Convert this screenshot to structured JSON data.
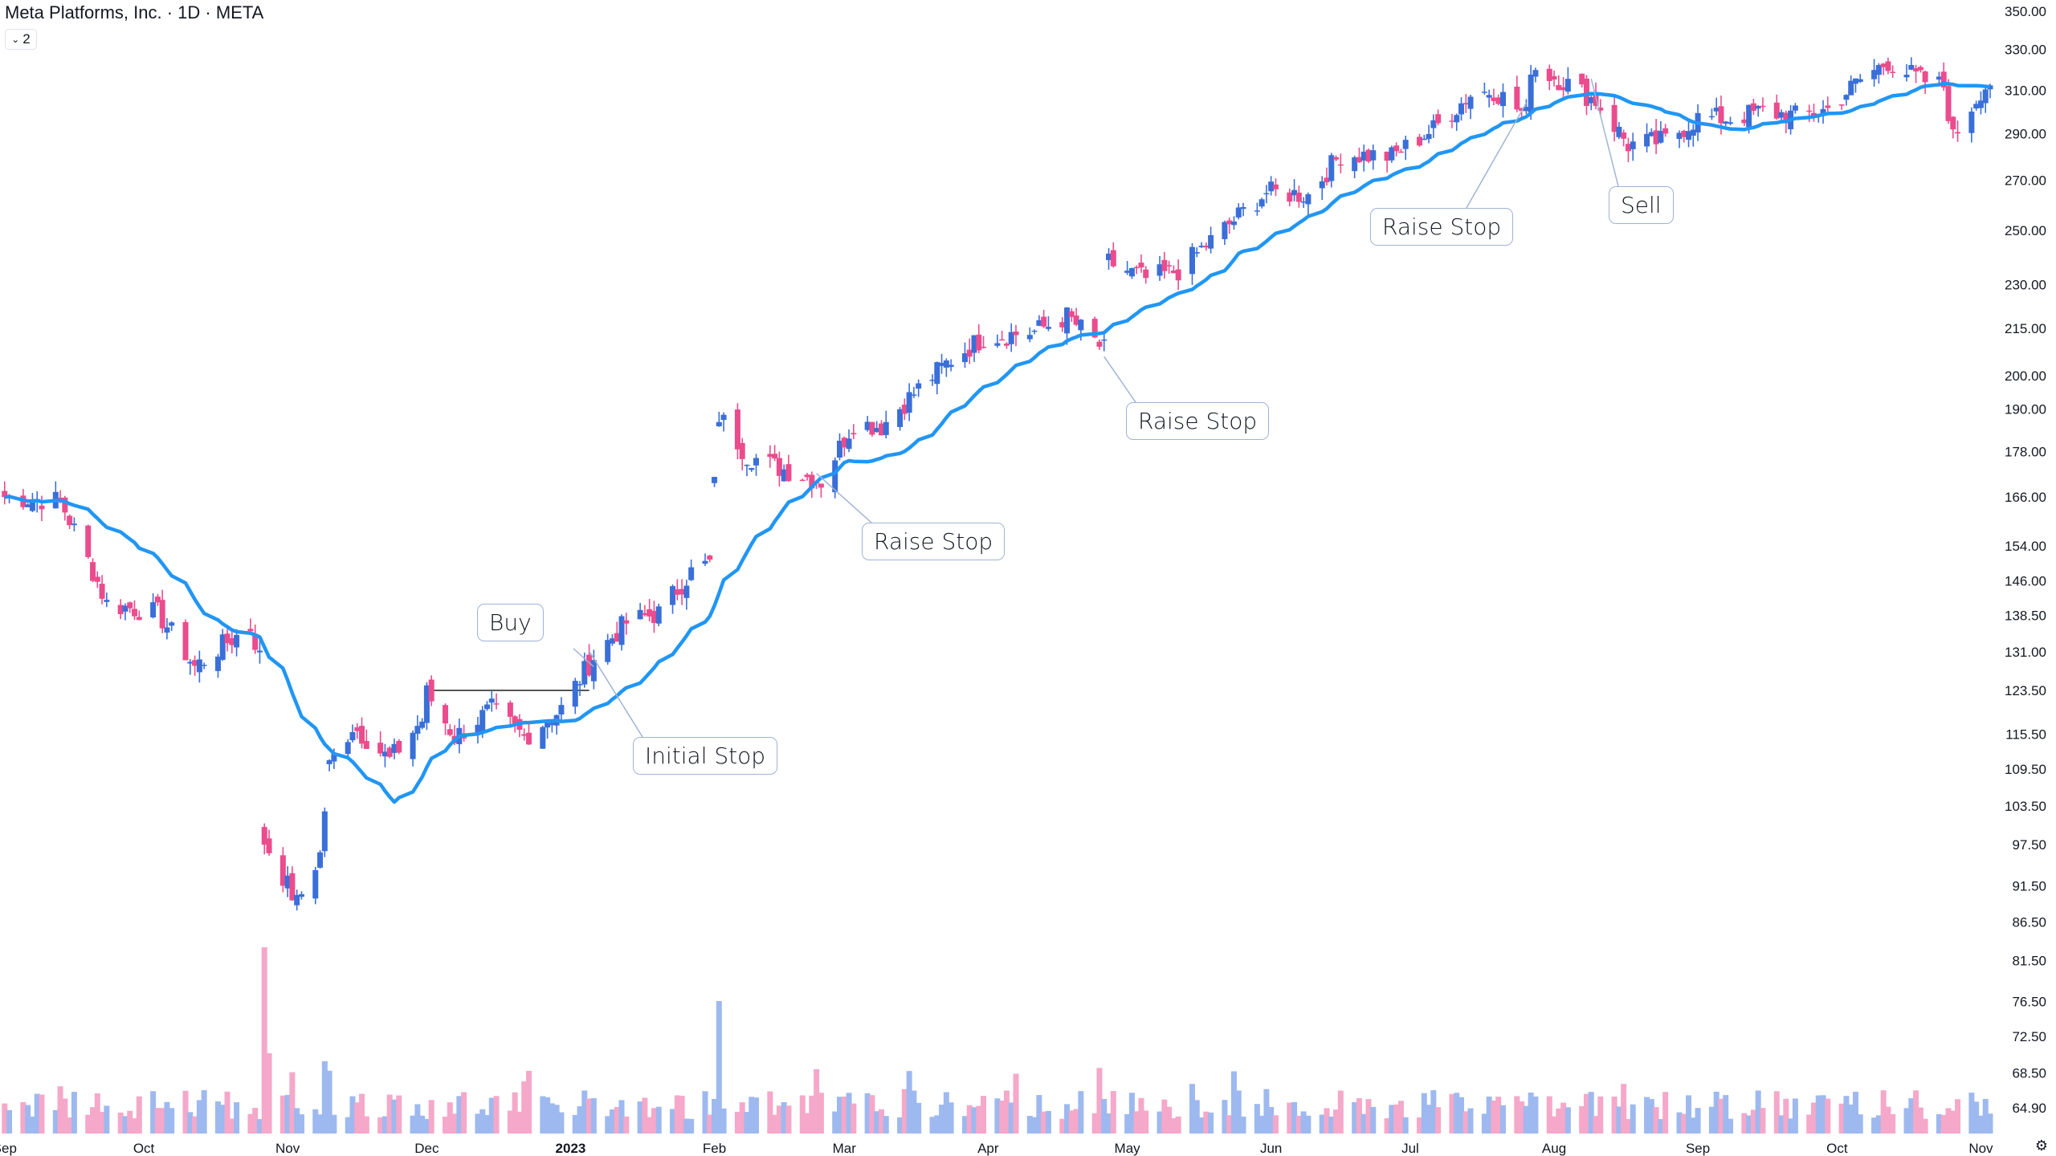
{
  "header": {
    "title": "Meta Platforms, Inc. · 1D · META",
    "collapse_count": "2"
  },
  "annotations": [
    {
      "label": "Buy"
    },
    {
      "label": "Initial Stop"
    },
    {
      "label": "Raise Stop"
    },
    {
      "label": "Raise Stop"
    },
    {
      "label": "Raise Stop"
    },
    {
      "label": "Sell"
    }
  ],
  "colors": {
    "up": "#3a6fd8",
    "down": "#ea4c8d",
    "ma": "#2196f3",
    "vol_up": "#9db9ef",
    "vol_down": "#f5a8c9",
    "buy_line": "#555555",
    "callout": "#9fb3d6"
  },
  "icons": {
    "settings": "gear-icon"
  },
  "chart_data": {
    "type": "candlestick",
    "title": "Meta Platforms, Inc. · 1D · META",
    "x_labels": [
      "Sep",
      "Oct",
      "Nov",
      "Dec",
      "2023",
      "Feb",
      "Mar",
      "Apr",
      "May",
      "Jun",
      "Jul",
      "Aug",
      "Sep",
      "Oct",
      "Nov"
    ],
    "y_ticks": [
      64.9,
      68.5,
      72.5,
      76.5,
      81.5,
      86.5,
      91.5,
      97.5,
      103.5,
      109.5,
      115.5,
      123.5,
      131.0,
      138.5,
      146.0,
      154.0,
      166.0,
      178.0,
      190.0,
      200.0,
      215.0,
      230.0,
      250.0,
      270.0,
      290.0,
      310.0,
      330.0,
      350.0
    ],
    "y_scale": "log",
    "ylim": [
      64.9,
      350.0
    ],
    "xlim": [
      "2022-08-31",
      "2023-11-03"
    ],
    "moving_average": {
      "type": "21-day",
      "color": "#2196f3"
    },
    "price_anchors": [
      [
        "2022-09-01",
        166
      ],
      [
        "2022-09-13",
        165
      ],
      [
        "2022-09-23",
        141
      ],
      [
        "2022-10-04",
        139
      ],
      [
        "2022-10-12",
        128
      ],
      [
        "2022-10-19",
        133
      ],
      [
        "2022-10-24",
        136
      ],
      [
        "2022-10-26",
        130
      ],
      [
        "2022-10-27",
        98
      ],
      [
        "2022-11-03",
        89
      ],
      [
        "2022-11-08",
        96
      ],
      [
        "2022-11-10",
        110
      ],
      [
        "2022-11-15",
        117
      ],
      [
        "2022-11-23",
        111
      ],
      [
        "2022-11-30",
        118
      ],
      [
        "2022-12-01",
        123
      ],
      [
        "2022-12-07",
        115
      ],
      [
        "2022-12-15",
        120
      ],
      [
        "2022-12-22",
        115
      ],
      [
        "2022-12-30",
        120
      ],
      [
        "2023-01-06",
        130
      ],
      [
        "2023-01-13",
        137
      ],
      [
        "2023-01-20",
        139
      ],
      [
        "2023-01-27",
        148
      ],
      [
        "2023-01-31",
        150
      ],
      [
        "2023-02-02",
        188
      ],
      [
        "2023-02-08",
        177
      ],
      [
        "2023-02-14",
        174
      ],
      [
        "2023-02-24",
        170
      ],
      [
        "2023-03-03",
        186
      ],
      [
        "2023-03-09",
        185
      ],
      [
        "2023-03-17",
        196
      ],
      [
        "2023-03-24",
        205
      ],
      [
        "2023-03-31",
        212
      ],
      [
        "2023-04-11",
        214
      ],
      [
        "2023-04-18",
        219
      ],
      [
        "2023-04-26",
        208
      ],
      [
        "2023-04-27",
        238
      ],
      [
        "2023-05-05",
        232
      ],
      [
        "2023-05-12",
        235
      ],
      [
        "2023-05-19",
        246
      ],
      [
        "2023-05-31",
        265
      ],
      [
        "2023-06-09",
        264
      ],
      [
        "2023-06-16",
        281
      ],
      [
        "2023-06-27",
        280
      ],
      [
        "2023-07-06",
        292
      ],
      [
        "2023-07-14",
        308
      ],
      [
        "2023-07-19",
        310
      ],
      [
        "2023-07-26",
        298
      ],
      [
        "2023-07-27",
        322
      ],
      [
        "2023-08-04",
        313
      ],
      [
        "2023-08-10",
        305
      ],
      [
        "2023-08-17",
        285
      ],
      [
        "2023-08-25",
        287
      ],
      [
        "2023-09-01",
        297
      ],
      [
        "2023-09-08",
        297
      ],
      [
        "2023-09-15",
        300
      ],
      [
        "2023-09-22",
        298
      ],
      [
        "2023-09-29",
        301
      ],
      [
        "2023-10-06",
        315
      ],
      [
        "2023-10-12",
        324
      ],
      [
        "2023-10-19",
        315
      ],
      [
        "2023-10-24",
        312
      ],
      [
        "2023-10-26",
        288
      ],
      [
        "2023-11-01",
        310
      ],
      [
        "2023-11-03",
        314
      ]
    ],
    "volume_spikes": [
      [
        "2022-10-27",
        232
      ],
      [
        "2023-02-02",
        165
      ],
      [
        "2022-10-28",
        100
      ],
      [
        "2022-11-09",
        90
      ]
    ],
    "buy_line_price": 123.5,
    "events": [
      {
        "label": "Buy",
        "date": "2023-01-06"
      },
      {
        "label": "Initial Stop",
        "date": "2023-01-05"
      },
      {
        "label": "Raise Stop",
        "date": "2023-02-23"
      },
      {
        "label": "Raise Stop",
        "date": "2023-04-26"
      },
      {
        "label": "Raise Stop",
        "date": "2023-07-26"
      },
      {
        "label": "Sell",
        "date": "2023-08-09"
      }
    ]
  }
}
